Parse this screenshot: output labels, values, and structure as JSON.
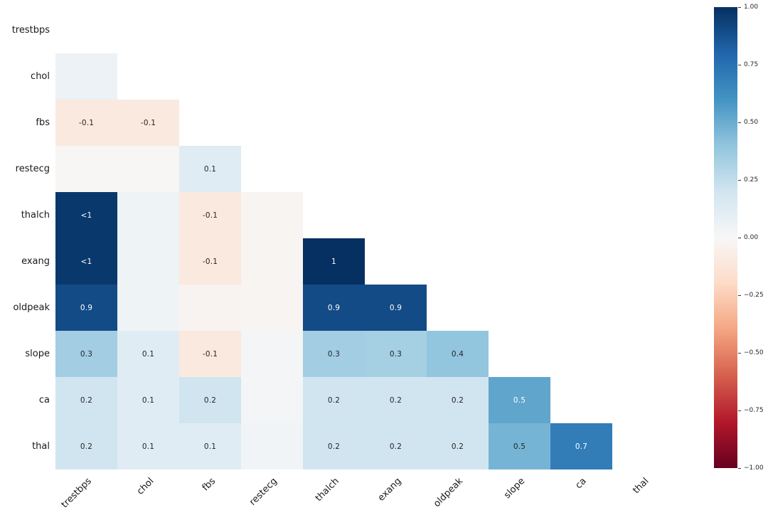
{
  "chart_data": {
    "type": "heatmap",
    "title": "",
    "description": "Lower-triangle correlation matrix heatmap (diagonal and upper triangle masked), RdBu colormap",
    "variables": [
      "trestbps",
      "chol",
      "fbs",
      "restecg",
      "thalch",
      "exang",
      "oldpeak",
      "slope",
      "ca",
      "thal"
    ],
    "vmin": -1,
    "vmax": 1,
    "colormap": {
      "name": "RdBu",
      "anchors": [
        "#67001f",
        "#b2182b",
        "#d6604d",
        "#f4a582",
        "#fddbc7",
        "#f7f7f7",
        "#d1e5f0",
        "#92c5de",
        "#4393c3",
        "#2166ac",
        "#053061"
      ]
    },
    "cells": [
      {
        "row": "chol",
        "col": "trestbps",
        "value": 0.06,
        "label": ""
      },
      {
        "row": "fbs",
        "col": "trestbps",
        "value": -0.1,
        "label": "-0.1"
      },
      {
        "row": "fbs",
        "col": "chol",
        "value": -0.1,
        "label": "-0.1"
      },
      {
        "row": "restecg",
        "col": "trestbps",
        "value": -0.01,
        "label": ""
      },
      {
        "row": "restecg",
        "col": "chol",
        "value": -0.01,
        "label": ""
      },
      {
        "row": "restecg",
        "col": "fbs",
        "value": 0.12,
        "label": "0.1"
      },
      {
        "row": "thalch",
        "col": "trestbps",
        "value": 0.97,
        "label": "<1"
      },
      {
        "row": "thalch",
        "col": "chol",
        "value": 0.05,
        "label": ""
      },
      {
        "row": "thalch",
        "col": "fbs",
        "value": -0.1,
        "label": "-0.1"
      },
      {
        "row": "thalch",
        "col": "restecg",
        "value": -0.02,
        "label": ""
      },
      {
        "row": "exang",
        "col": "trestbps",
        "value": 0.97,
        "label": "<1"
      },
      {
        "row": "exang",
        "col": "chol",
        "value": 0.05,
        "label": ""
      },
      {
        "row": "exang",
        "col": "fbs",
        "value": -0.1,
        "label": "-0.1"
      },
      {
        "row": "exang",
        "col": "restecg",
        "value": -0.02,
        "label": ""
      },
      {
        "row": "exang",
        "col": "thalch",
        "value": 1.0,
        "label": "1"
      },
      {
        "row": "oldpeak",
        "col": "trestbps",
        "value": 0.9,
        "label": "0.9"
      },
      {
        "row": "oldpeak",
        "col": "chol",
        "value": 0.05,
        "label": ""
      },
      {
        "row": "oldpeak",
        "col": "fbs",
        "value": -0.03,
        "label": ""
      },
      {
        "row": "oldpeak",
        "col": "restecg",
        "value": -0.02,
        "label": ""
      },
      {
        "row": "oldpeak",
        "col": "thalch",
        "value": 0.9,
        "label": "0.9"
      },
      {
        "row": "oldpeak",
        "col": "exang",
        "value": 0.9,
        "label": "0.9"
      },
      {
        "row": "slope",
        "col": "trestbps",
        "value": 0.35,
        "label": "0.3"
      },
      {
        "row": "slope",
        "col": "chol",
        "value": 0.12,
        "label": "0.1"
      },
      {
        "row": "slope",
        "col": "fbs",
        "value": -0.1,
        "label": "-0.1"
      },
      {
        "row": "slope",
        "col": "restecg",
        "value": 0.02,
        "label": ""
      },
      {
        "row": "slope",
        "col": "thalch",
        "value": 0.35,
        "label": "0.3"
      },
      {
        "row": "slope",
        "col": "exang",
        "value": 0.34,
        "label": "0.3"
      },
      {
        "row": "slope",
        "col": "oldpeak",
        "value": 0.4,
        "label": "0.4"
      },
      {
        "row": "ca",
        "col": "trestbps",
        "value": 0.2,
        "label": "0.2"
      },
      {
        "row": "ca",
        "col": "chol",
        "value": 0.12,
        "label": "0.1"
      },
      {
        "row": "ca",
        "col": "fbs",
        "value": 0.2,
        "label": "0.2"
      },
      {
        "row": "ca",
        "col": "restecg",
        "value": 0.02,
        "label": ""
      },
      {
        "row": "ca",
        "col": "thalch",
        "value": 0.2,
        "label": "0.2"
      },
      {
        "row": "ca",
        "col": "exang",
        "value": 0.2,
        "label": "0.2"
      },
      {
        "row": "ca",
        "col": "oldpeak",
        "value": 0.2,
        "label": "0.2"
      },
      {
        "row": "ca",
        "col": "slope",
        "value": 0.53,
        "label": "0.5"
      },
      {
        "row": "thal",
        "col": "trestbps",
        "value": 0.2,
        "label": "0.2"
      },
      {
        "row": "thal",
        "col": "chol",
        "value": 0.12,
        "label": "0.1"
      },
      {
        "row": "thal",
        "col": "fbs",
        "value": 0.12,
        "label": "0.1"
      },
      {
        "row": "thal",
        "col": "restecg",
        "value": 0.03,
        "label": ""
      },
      {
        "row": "thal",
        "col": "thalch",
        "value": 0.2,
        "label": "0.2"
      },
      {
        "row": "thal",
        "col": "exang",
        "value": 0.2,
        "label": "0.2"
      },
      {
        "row": "thal",
        "col": "oldpeak",
        "value": 0.2,
        "label": "0.2"
      },
      {
        "row": "thal",
        "col": "slope",
        "value": 0.47,
        "label": "0.5"
      },
      {
        "row": "thal",
        "col": "ca",
        "value": 0.7,
        "label": "0.7"
      }
    ],
    "colorbar": {
      "position": "right",
      "ticks": [
        "1.00",
        "0.75",
        "0.50",
        "0.25",
        "0.00",
        "−0.25",
        "−0.50",
        "−0.75",
        "−1.00"
      ]
    },
    "legend": null,
    "grid": false
  }
}
